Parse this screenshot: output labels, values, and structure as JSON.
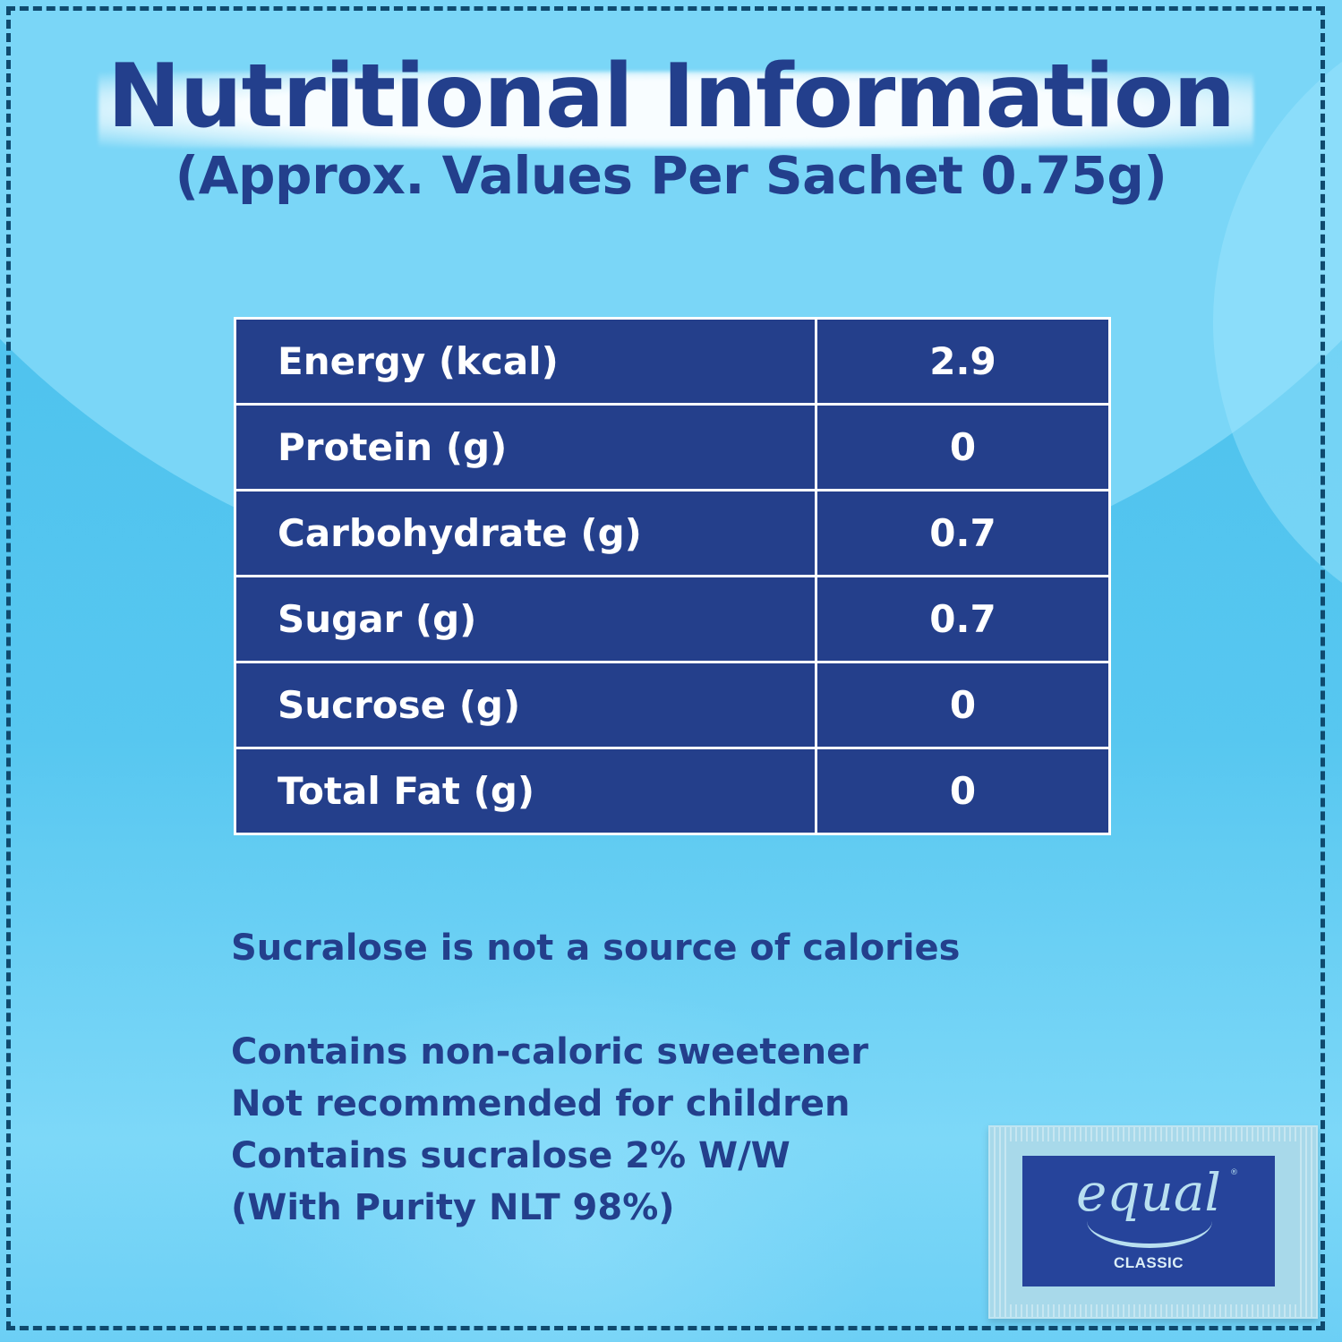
{
  "header": {
    "title": "Nutritional Information",
    "subtitle": "(Approx. Values Per Sachet 0.75g)"
  },
  "nutrition_table": {
    "rows": [
      {
        "label": "Energy (kcal)",
        "value": "2.9"
      },
      {
        "label": "Protein (g)",
        "value": "0"
      },
      {
        "label": "Carbohydrate (g)",
        "value": "0.7"
      },
      {
        "label": "Sugar (g)",
        "value": "0.7"
      },
      {
        "label": "Sucrose (g)",
        "value": "0"
      },
      {
        "label": "Total Fat (g)",
        "value": "0"
      }
    ]
  },
  "notes": {
    "calorie_statement": "Sucralose is not a source of calories",
    "lines": [
      "Contains non-caloric sweetener",
      "Not recommended for children",
      "Contains sucralose 2% W/W",
      "(With Purity NLT 98%)"
    ]
  },
  "product": {
    "brand": "equal",
    "registered_mark": "®",
    "variant": "CLASSIC"
  },
  "colors": {
    "navy": "#243f8b",
    "background_light": "#7ad6f7",
    "background_dark": "#48bfec",
    "border_dash": "#0f4a6e",
    "text_white": "#ffffff"
  }
}
